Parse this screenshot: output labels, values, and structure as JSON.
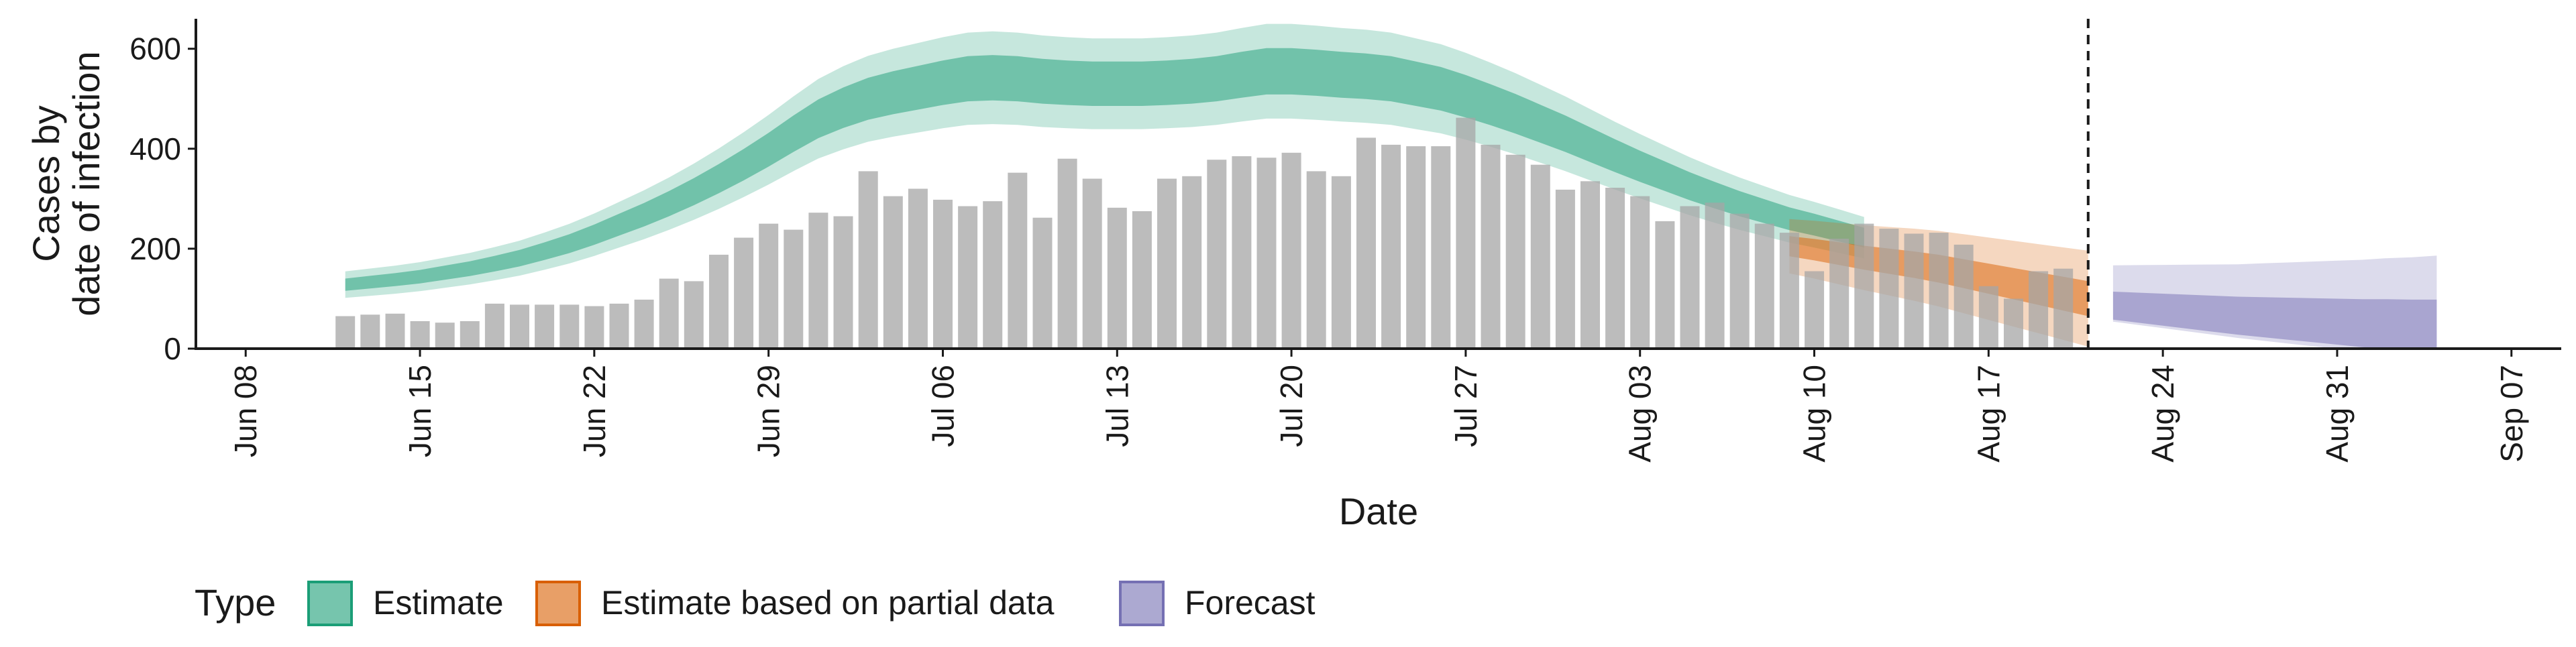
{
  "chart_data": {
    "type": "bar",
    "title": "",
    "xlabel": "Date",
    "ylabel_lines": [
      "Cases by",
      "date of infection"
    ],
    "ylim": [
      0,
      660
    ],
    "y_ticks": [
      0,
      200,
      400,
      600
    ],
    "x_range": [
      "2020-06-06",
      "2020-09-09"
    ],
    "x_ticks": [
      {
        "date": "2020-06-08",
        "label": "Jun 08"
      },
      {
        "date": "2020-06-15",
        "label": "Jun 15"
      },
      {
        "date": "2020-06-22",
        "label": "Jun 22"
      },
      {
        "date": "2020-06-29",
        "label": "Jun 29"
      },
      {
        "date": "2020-07-06",
        "label": "Jul 06"
      },
      {
        "date": "2020-07-13",
        "label": "Jul 13"
      },
      {
        "date": "2020-07-20",
        "label": "Jul 20"
      },
      {
        "date": "2020-07-27",
        "label": "Jul 27"
      },
      {
        "date": "2020-08-03",
        "label": "Aug 03"
      },
      {
        "date": "2020-08-10",
        "label": "Aug 10"
      },
      {
        "date": "2020-08-17",
        "label": "Aug 17"
      },
      {
        "date": "2020-08-24",
        "label": "Aug 24"
      },
      {
        "date": "2020-08-31",
        "label": "Aug 31"
      },
      {
        "date": "2020-09-07",
        "label": "Sep 07"
      }
    ],
    "cutoff_date": "2020-08-21",
    "reported_cases": {
      "start_date": "2020-06-12",
      "values": [
        65,
        68,
        70,
        55,
        52,
        55,
        90,
        88,
        88,
        88,
        85,
        90,
        98,
        140,
        135,
        188,
        222,
        250,
        238,
        272,
        265,
        355,
        305,
        320,
        298,
        285,
        295,
        352,
        262,
        380,
        340,
        282,
        275,
        340,
        345,
        378,
        385,
        382,
        392,
        355,
        345,
        422,
        408,
        405,
        405,
        462,
        408,
        388,
        368,
        318,
        335,
        322,
        305,
        255,
        285,
        292,
        270,
        250,
        232,
        155,
        220,
        250,
        240,
        230,
        232,
        208,
        125,
        100,
        155,
        160
      ]
    },
    "series": [
      {
        "name": "Estimate",
        "color": "#1b9e77",
        "start_date": "2020-06-12",
        "median": [
          128,
          133,
          138,
          144,
          152,
          160,
          170,
          181,
          195,
          210,
          228,
          248,
          268,
          290,
          314,
          340,
          368,
          398,
          430,
          460,
          482,
          500,
          512,
          522,
          532,
          540,
          542,
          540,
          535,
          532,
          530,
          530,
          530,
          532,
          535,
          540,
          548,
          555,
          555,
          552,
          548,
          545,
          540,
          530,
          520,
          505,
          488,
          470,
          450,
          430,
          408,
          386,
          365,
          345,
          325,
          307,
          290,
          275,
          260,
          248,
          235,
          222
        ]
      },
      {
        "name": "Estimate based on partial data",
        "color": "#d95f02",
        "start_date": "2020-08-09",
        "median": [
          205,
          198,
          190,
          182,
          175,
          168,
          160,
          150,
          140,
          130,
          120,
          110,
          100
        ]
      },
      {
        "name": "Forecast",
        "color": "#7570b3",
        "start_date": "2020-08-22",
        "median": [
          92,
          88,
          84,
          80,
          76,
          72,
          69,
          66,
          63,
          60,
          57,
          55,
          52,
          50
        ]
      }
    ],
    "legend": {
      "title": "Type",
      "position": "bottom",
      "items": [
        "Estimate",
        "Estimate based on partial data",
        "Forecast"
      ]
    },
    "grid": false
  }
}
